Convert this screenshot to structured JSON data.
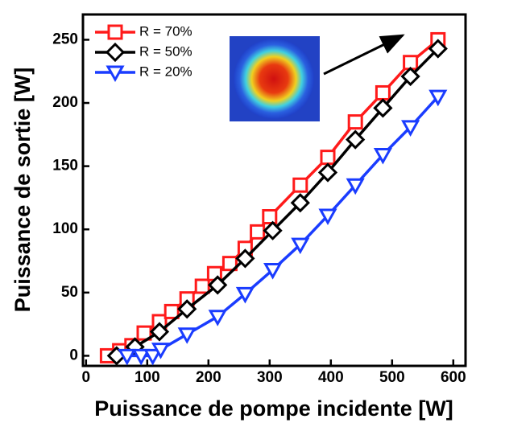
{
  "chart_data": {
    "type": "line",
    "x_label": "Puissance de pompe incidente  [W]",
    "y_label": "Puissance de sortie  [W]",
    "xlim": [
      -5,
      620
    ],
    "ylim": [
      -8,
      270
    ],
    "xticks": [
      0,
      100,
      200,
      300,
      400,
      500,
      600
    ],
    "yticks": [
      0,
      50,
      100,
      150,
      200,
      250
    ],
    "legend": "upper left",
    "series": [
      {
        "name": "R = 70%",
        "color": "#ff1a1a",
        "marker": "square",
        "x": [
          35,
          55,
          75,
          95,
          120,
          140,
          165,
          190,
          210,
          235,
          260,
          280,
          300,
          350,
          395,
          440,
          485,
          530,
          575
        ],
        "values": [
          0,
          4,
          8,
          18,
          27,
          35,
          45,
          55,
          65,
          73,
          85,
          98,
          110,
          135,
          157,
          185,
          208,
          232,
          250
        ]
      },
      {
        "name": "R = 50%",
        "color": "#000000",
        "marker": "diamond",
        "x": [
          50,
          80,
          120,
          165,
          215,
          260,
          305,
          350,
          395,
          440,
          485,
          530,
          575
        ],
        "values": [
          0,
          7,
          19,
          37,
          56,
          77,
          99,
          121,
          145,
          171,
          196,
          221,
          243
        ]
      },
      {
        "name": "R = 20%",
        "color": "#1a3cff",
        "marker": "triangle-down",
        "x": [
          67,
          90,
          109,
          122,
          165,
          215,
          260,
          305,
          350,
          395,
          440,
          485,
          530,
          575
        ],
        "values": [
          0,
          0,
          0,
          5,
          17,
          31,
          49,
          68,
          88,
          111,
          135,
          159,
          181,
          205
        ]
      }
    ]
  }
}
